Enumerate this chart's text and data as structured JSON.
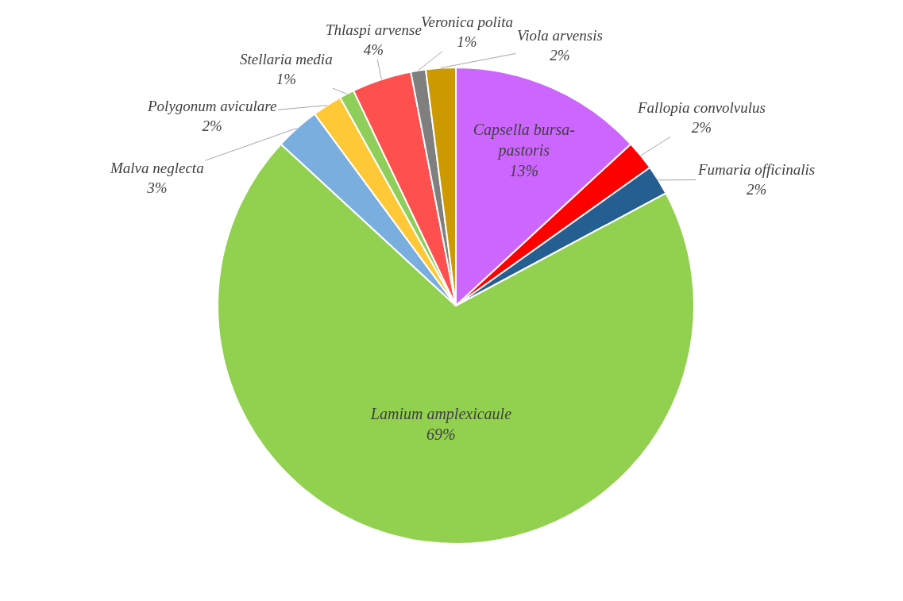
{
  "chart_data": {
    "type": "pie",
    "categories": [
      "Capsella bursa-pastoris",
      "Fallopia convolvulus",
      "Fumaria officinalis",
      "Lamium amplexicaule",
      "Malva neglecta",
      "Polygonum aviculare",
      "Stellaria media",
      "Thlaspi arvense",
      "Veronica polita",
      "Viola arvensis"
    ],
    "values": [
      13,
      2,
      2,
      69,
      3,
      2,
      1,
      4,
      1,
      2
    ],
    "value_labels": [
      "13%",
      "2%",
      "2%",
      "69%",
      "3%",
      "2%",
      "1%",
      "4%",
      "1%",
      "2%"
    ],
    "colors": [
      "#cc66ff",
      "#ff0000",
      "#255e91",
      "#92d050",
      "#7aaedf",
      "#ffc836",
      "#8fce5a",
      "#ff5050",
      "#7f7f7f",
      "#cc9900"
    ],
    "legend": false
  }
}
